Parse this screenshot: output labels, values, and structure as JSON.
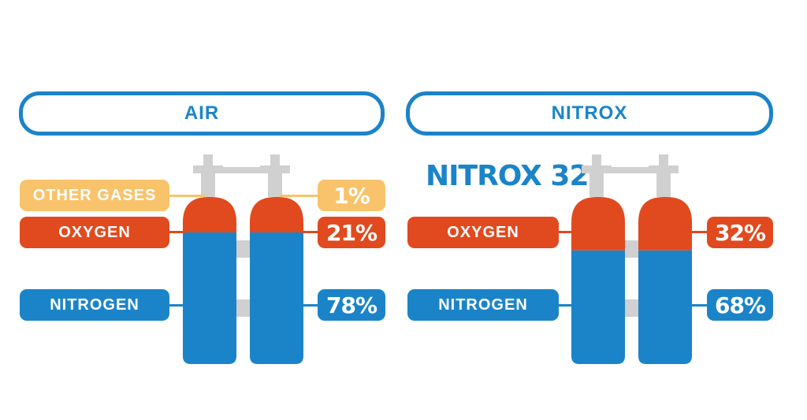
{
  "colors": {
    "blue": "#1b84c8",
    "orange": "#e04a1e",
    "yellow": "#f9c36b",
    "gray": "#d0d0d0"
  },
  "air": {
    "title": "AIR",
    "gases": [
      {
        "name": "OTHER GASES",
        "percent": 1,
        "label": "1%",
        "color": "#f9c36b"
      },
      {
        "name": "OXYGEN",
        "percent": 21,
        "label": "21%",
        "color": "#e04a1e"
      },
      {
        "name": "NITROGEN",
        "percent": 78,
        "label": "78%",
        "color": "#1b84c8"
      }
    ]
  },
  "nitrox": {
    "title": "NITROX",
    "subtitle": "NITROX 32",
    "gases": [
      {
        "name": "OXYGEN",
        "percent": 32,
        "label": "32%",
        "color": "#e04a1e"
      },
      {
        "name": "NITROGEN",
        "percent": 68,
        "label": "68%",
        "color": "#1b84c8"
      }
    ]
  }
}
